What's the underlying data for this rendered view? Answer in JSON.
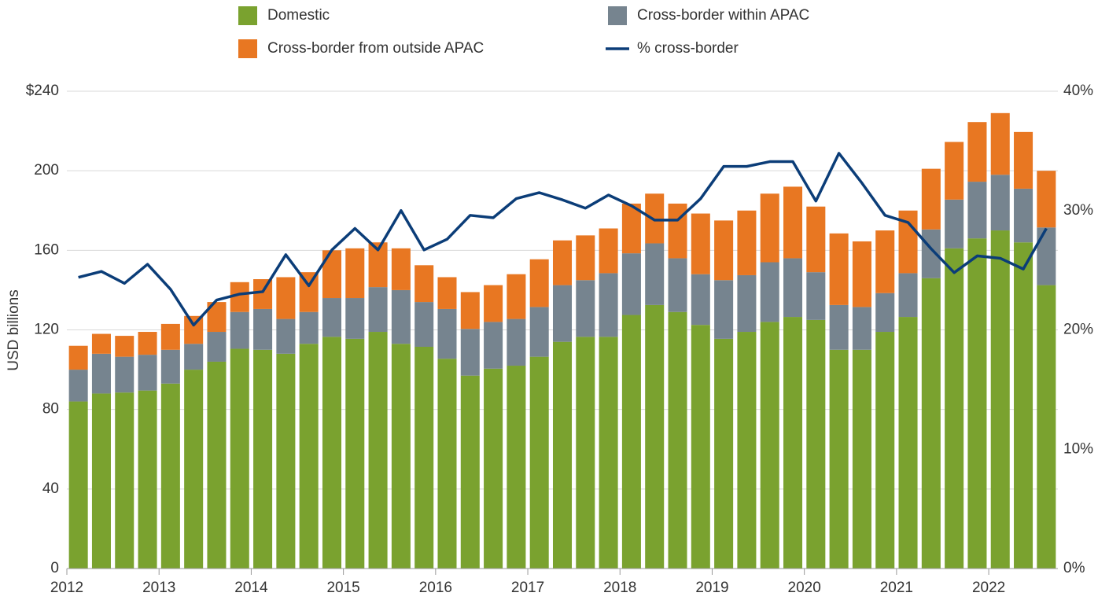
{
  "chart_data": {
    "type": "bar",
    "y_label": "USD billions",
    "categories": [
      "2012",
      null,
      null,
      null,
      "2013",
      null,
      null,
      null,
      "2014",
      null,
      null,
      null,
      "2015",
      null,
      null,
      null,
      "2016",
      null,
      null,
      null,
      "2017",
      null,
      null,
      null,
      "2018",
      null,
      null,
      null,
      "2019",
      null,
      null,
      null,
      "2020",
      null,
      null,
      null,
      "2021",
      null,
      null,
      null,
      "2022",
      null,
      null
    ],
    "series": [
      {
        "name": "Domestic",
        "color": "#7aa22f",
        "values": [
          84,
          88,
          88.5,
          89.5,
          93,
          100,
          104,
          110.5,
          110,
          108,
          113,
          116.5,
          115.5,
          119,
          113,
          111.5,
          105.5,
          97,
          100.5,
          102,
          106.5,
          114,
          116.5,
          116.5,
          127.5,
          132.5,
          129,
          122.5,
          115.5,
          119,
          124,
          126.5,
          125,
          110,
          110,
          119,
          126.5,
          146,
          161,
          166,
          170,
          164,
          142.5
        ]
      },
      {
        "name": "Cross-border within APAC",
        "color": "#76848f",
        "values": [
          16,
          20,
          18,
          18,
          17,
          13,
          15,
          18.5,
          20.5,
          17.5,
          16,
          19.5,
          20.5,
          22.5,
          27,
          22.5,
          25,
          23.5,
          23.5,
          23.5,
          25,
          28.5,
          28.5,
          32,
          31,
          31,
          27,
          25.5,
          29.5,
          28.5,
          30,
          29.5,
          24,
          22.5,
          21.5,
          19.5,
          22,
          24.5,
          24.5,
          28.5,
          28,
          27,
          29
        ]
      },
      {
        "name": "Cross-border from outside APAC",
        "color": "#e87722",
        "values": [
          12,
          10,
          10.5,
          11.5,
          13,
          14,
          15,
          15,
          15,
          21,
          20,
          24,
          25,
          22.5,
          21,
          18.5,
          16,
          18.5,
          18.5,
          22.5,
          24,
          22.5,
          22.5,
          22.5,
          25,
          25,
          27.5,
          30.5,
          30,
          32.5,
          34.5,
          36,
          33,
          36,
          33,
          31.5,
          31.5,
          30.5,
          29,
          30,
          31,
          28.5,
          28.5
        ]
      },
      {
        "name": "% cross-border",
        "color": "#0b3d78",
        "type": "line",
        "axis": "y2",
        "values": [
          24.4,
          24.9,
          23.9,
          25.5,
          23.4,
          20.4,
          22.5,
          23.0,
          23.2,
          26.3,
          23.7,
          26.7,
          28.5,
          26.7,
          30.0,
          26.7,
          27.6,
          29.6,
          29.4,
          31.0,
          31.5,
          30.9,
          30.2,
          31.3,
          30.4,
          29.2,
          29.2,
          31.0,
          33.7,
          33.7,
          34.1,
          34.1,
          30.8,
          34.8,
          32.3,
          29.6,
          29.0,
          26.8,
          24.8,
          26.2,
          26.0,
          25.1,
          28.5
        ]
      }
    ],
    "stacked": true,
    "ylim": [
      0,
      240
    ],
    "yticks": [
      0,
      40,
      80,
      120,
      160,
      200,
      {
        "value": 240,
        "label": "$240"
      }
    ],
    "y2lim": [
      0,
      40
    ],
    "y2ticks": [
      {
        "value": 0,
        "label": "0%"
      },
      {
        "value": 10,
        "label": "10%"
      },
      {
        "value": 20,
        "label": "20%"
      },
      {
        "value": 30,
        "label": "30%"
      },
      {
        "value": 40,
        "label": "40%"
      }
    ],
    "grid": true,
    "legend": "top"
  }
}
